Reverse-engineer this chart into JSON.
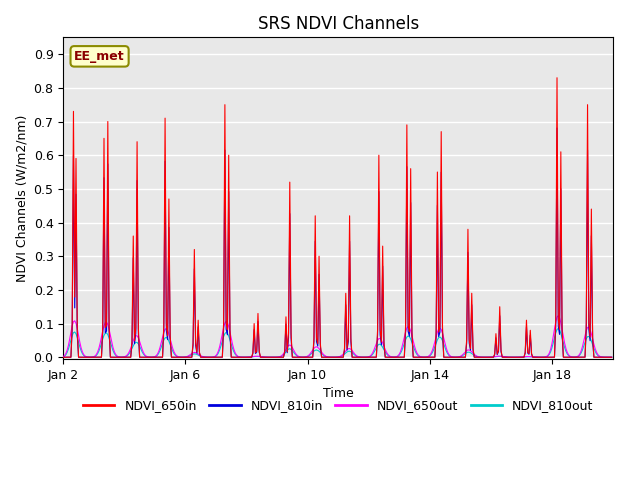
{
  "title": "SRS NDVI Channels",
  "xlabel": "Time",
  "ylabel": "NDVI Channels (W/m2/nm)",
  "xlim": [
    0,
    432
  ],
  "ylim": [
    -0.005,
    0.95
  ],
  "yticks": [
    0.0,
    0.1,
    0.2,
    0.3,
    0.4,
    0.5,
    0.6,
    0.7,
    0.8,
    0.9
  ],
  "xtick_positions": [
    0,
    96,
    192,
    288,
    384
  ],
  "xtick_labels": [
    "Jan 2",
    "Jan 6",
    "Jan 10",
    "Jan 14",
    "Jan 18"
  ],
  "colors": {
    "NDVI_650in": "#FF0000",
    "NDVI_810in": "#0000DD",
    "NDVI_650out": "#FF00FF",
    "NDVI_810out": "#00CCCC"
  },
  "bg_color": "#E8E8E8",
  "annotation_text": "EE_met",
  "peaks": [
    [
      8,
      0.73
    ],
    [
      10,
      0.59
    ],
    [
      32,
      0.65
    ],
    [
      35,
      0.7
    ],
    [
      55,
      0.36
    ],
    [
      58,
      0.64
    ],
    [
      80,
      0.71
    ],
    [
      83,
      0.47
    ],
    [
      103,
      0.32
    ],
    [
      106,
      0.11
    ],
    [
      127,
      0.75
    ],
    [
      130,
      0.6
    ],
    [
      150,
      0.1
    ],
    [
      153,
      0.13
    ],
    [
      175,
      0.12
    ],
    [
      178,
      0.52
    ],
    [
      198,
      0.42
    ],
    [
      201,
      0.3
    ],
    [
      222,
      0.19
    ],
    [
      225,
      0.42
    ],
    [
      248,
      0.6
    ],
    [
      251,
      0.33
    ],
    [
      270,
      0.69
    ],
    [
      273,
      0.56
    ],
    [
      294,
      0.55
    ],
    [
      297,
      0.67
    ],
    [
      318,
      0.38
    ],
    [
      321,
      0.19
    ],
    [
      340,
      0.07
    ],
    [
      343,
      0.15
    ],
    [
      364,
      0.11
    ],
    [
      367,
      0.08
    ],
    [
      388,
      0.83
    ],
    [
      391,
      0.61
    ],
    [
      412,
      0.75
    ],
    [
      415,
      0.44
    ]
  ]
}
